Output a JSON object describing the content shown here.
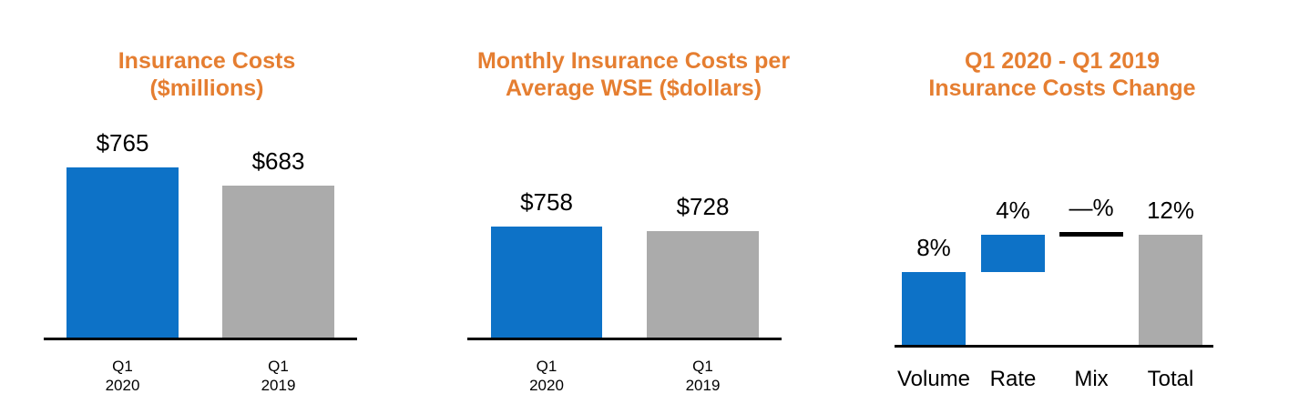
{
  "page": {
    "background": "#FFFFFF"
  },
  "colors": {
    "title_orange": "#E57E31",
    "bar_blue": "#0D72C7",
    "bar_gray": "#ABABAB",
    "axis_black": "#000000",
    "text_black": "#000000"
  },
  "chart_data": [
    {
      "type": "bar",
      "title": "Insurance Costs ($millions)",
      "title_lines": [
        "Insurance Costs",
        "($millions)"
      ],
      "categories": [
        "Q1 2020",
        "Q1 2019"
      ],
      "category_lines": [
        [
          "Q1",
          "2020"
        ],
        [
          "Q1",
          "2019"
        ]
      ],
      "values": [
        765,
        683
      ],
      "value_labels": [
        "$765",
        "$683"
      ],
      "bar_colors": [
        "#0D72C7",
        "#ABABAB"
      ],
      "xlabel": "",
      "ylabel": "",
      "ylim": [
        0,
        765
      ],
      "grid": false,
      "legend": false
    },
    {
      "type": "bar",
      "title": "Monthly Insurance Costs per Average WSE ($dollars)",
      "title_lines": [
        "Monthly Insurance Costs per",
        "Average WSE ($dollars)"
      ],
      "categories": [
        "Q1 2020",
        "Q1 2019"
      ],
      "category_lines": [
        [
          "Q1",
          "2020"
        ],
        [
          "Q1",
          "2019"
        ]
      ],
      "values": [
        758,
        728
      ],
      "value_labels": [
        "$758",
        "$728"
      ],
      "bar_colors": [
        "#0D72C7",
        "#ABABAB"
      ],
      "xlabel": "",
      "ylabel": "",
      "ylim": [
        0,
        758
      ],
      "grid": false,
      "legend": false
    },
    {
      "type": "bar",
      "subtype": "waterfall",
      "title": "Q1 2020 - Q1 2019 Insurance Costs Change",
      "title_lines": [
        "Q1 2020 - Q1 2019",
        "Insurance Costs Change"
      ],
      "categories": [
        "Volume",
        "Rate",
        "Mix",
        "Total"
      ],
      "values": [
        8,
        4,
        0,
        12
      ],
      "segments": [
        {
          "start": 0,
          "end": 8
        },
        {
          "start": 8,
          "end": 12
        },
        {
          "start": 12,
          "end": 12
        },
        {
          "start": 0,
          "end": 12
        }
      ],
      "value_labels": [
        "8%",
        "4%",
        "—%",
        "12%"
      ],
      "bar_colors": [
        "#0D72C7",
        "#0D72C7",
        "#000000",
        "#ABABAB"
      ],
      "xlabel": "",
      "ylabel": "",
      "ylim": [
        0,
        12
      ],
      "grid": false,
      "legend": false
    }
  ]
}
